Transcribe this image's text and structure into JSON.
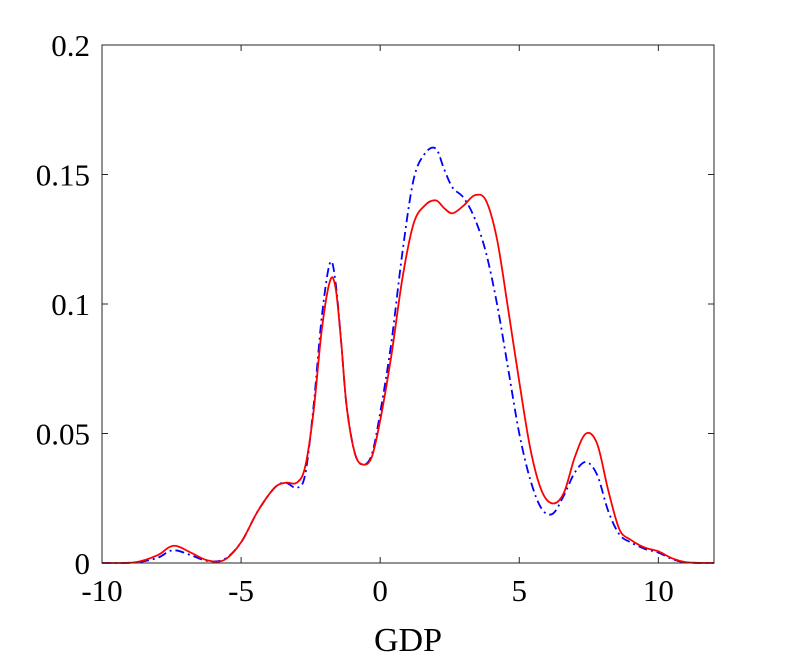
{
  "chart_data": {
    "type": "line",
    "title": "",
    "xlabel": "GDP",
    "ylabel": "",
    "xlim": [
      -10,
      12
    ],
    "ylim": [
      0,
      0.2
    ],
    "grid": false,
    "legend": "none",
    "x_ticks": [
      -10,
      -5,
      0,
      5,
      10
    ],
    "x_tick_labels": [
      "-10",
      "-5",
      "0",
      "5",
      "10"
    ],
    "y_ticks": [
      0,
      0.05,
      0.1,
      0.15,
      0.2
    ],
    "y_tick_labels": [
      "0",
      "0.05",
      "0.1",
      "0.15",
      "0.2"
    ],
    "series": [
      {
        "color": "#0000ff",
        "line_style": "dash-dot",
        "x": [
          -10,
          -8.8,
          -8.0,
          -7.6,
          -7.3,
          -6.8,
          -6.2,
          -5.6,
          -5.0,
          -4.4,
          -3.8,
          -3.4,
          -3.0,
          -2.7,
          -2.4,
          -2.1,
          -1.8,
          -1.6,
          -1.4,
          -1.2,
          -0.9,
          -0.6,
          -0.3,
          0.0,
          0.4,
          0.8,
          1.2,
          1.6,
          2.0,
          2.3,
          2.6,
          3.0,
          3.4,
          3.8,
          4.2,
          4.6,
          5.0,
          5.4,
          5.8,
          6.2,
          6.6,
          7.0,
          7.4,
          7.8,
          8.2,
          8.6,
          9.0,
          9.5,
          10.0,
          10.5,
          11.0,
          12.0
        ],
        "y": [
          0,
          0.0002,
          0.002,
          0.0045,
          0.0048,
          0.003,
          0.0008,
          0.0015,
          0.008,
          0.02,
          0.029,
          0.031,
          0.029,
          0.034,
          0.06,
          0.095,
          0.116,
          0.108,
          0.085,
          0.06,
          0.042,
          0.038,
          0.042,
          0.058,
          0.085,
          0.12,
          0.148,
          0.158,
          0.16,
          0.152,
          0.145,
          0.141,
          0.133,
          0.12,
          0.1,
          0.075,
          0.05,
          0.032,
          0.021,
          0.019,
          0.026,
          0.035,
          0.039,
          0.034,
          0.02,
          0.011,
          0.008,
          0.0055,
          0.004,
          0.0015,
          0.0002,
          0
        ]
      },
      {
        "color": "#ff0000",
        "line_style": "solid",
        "x": [
          -10,
          -8.8,
          -8.0,
          -7.6,
          -7.3,
          -6.8,
          -6.2,
          -5.6,
          -5.0,
          -4.4,
          -3.8,
          -3.4,
          -3.0,
          -2.7,
          -2.4,
          -2.1,
          -1.8,
          -1.6,
          -1.4,
          -1.2,
          -0.9,
          -0.6,
          -0.3,
          0.0,
          0.4,
          0.8,
          1.2,
          1.6,
          2.0,
          2.3,
          2.6,
          3.0,
          3.4,
          3.8,
          4.2,
          4.6,
          5.0,
          5.4,
          5.8,
          6.2,
          6.6,
          7.0,
          7.4,
          7.8,
          8.2,
          8.6,
          9.0,
          9.5,
          10.0,
          10.5,
          11.0,
          12.0
        ],
        "y": [
          0,
          0.0003,
          0.003,
          0.006,
          0.0065,
          0.004,
          0.001,
          0.0012,
          0.008,
          0.02,
          0.029,
          0.031,
          0.031,
          0.037,
          0.058,
          0.09,
          0.109,
          0.106,
          0.085,
          0.06,
          0.042,
          0.038,
          0.041,
          0.055,
          0.08,
          0.11,
          0.131,
          0.138,
          0.14,
          0.137,
          0.135,
          0.138,
          0.142,
          0.14,
          0.125,
          0.098,
          0.07,
          0.044,
          0.028,
          0.023,
          0.027,
          0.041,
          0.05,
          0.046,
          0.028,
          0.013,
          0.009,
          0.006,
          0.0045,
          0.0018,
          0.0003,
          0
        ]
      }
    ]
  }
}
